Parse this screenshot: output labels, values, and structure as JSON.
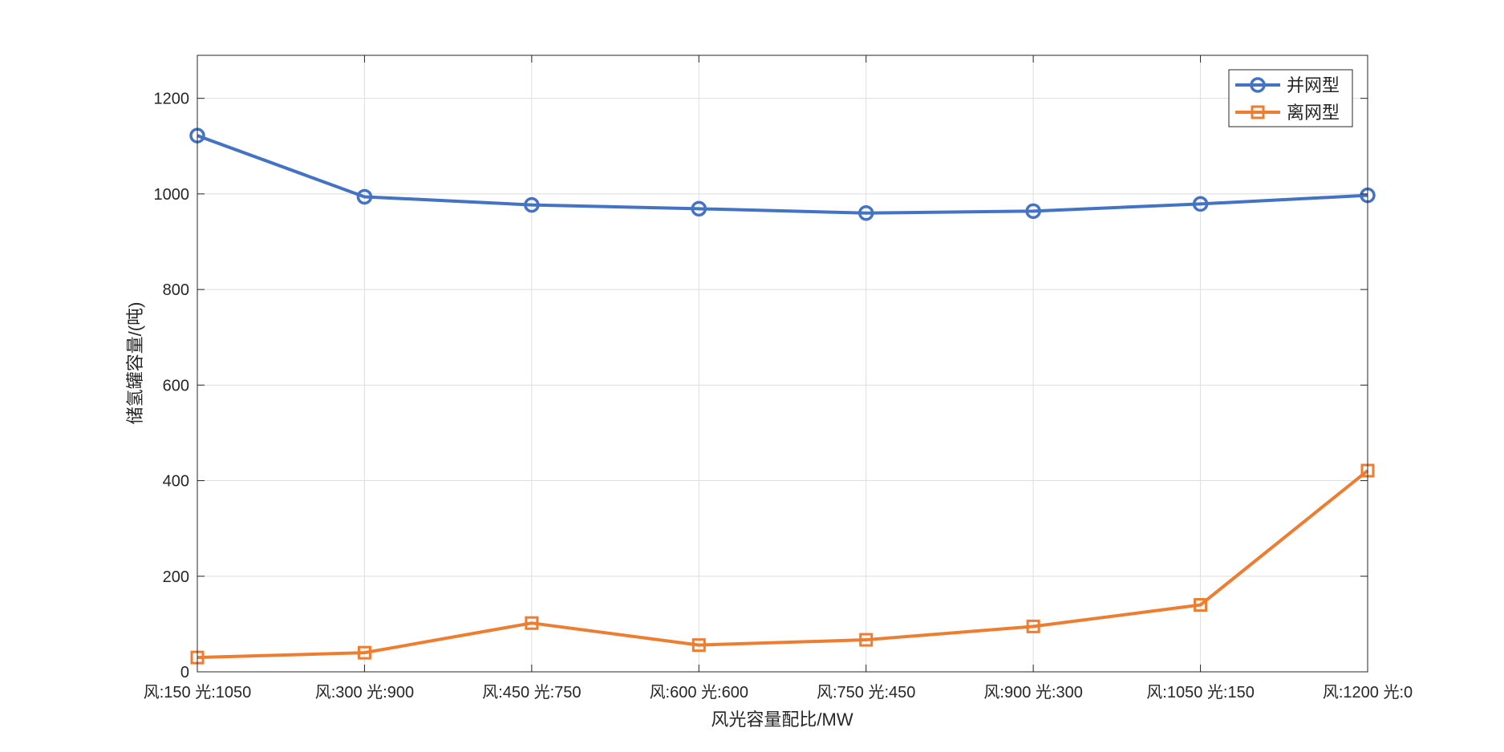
{
  "chart_data": {
    "type": "line",
    "title": "",
    "xlabel": "风光容量配比/MW",
    "ylabel": "储氢罐容量/(吨)",
    "categories": [
      "风:150 光:1050",
      "风:300 光:900",
      "风:450 光:750",
      "风:600 光:600",
      "风:750 光:450",
      "风:900 光:300",
      "风:1050 光:150",
      "风:1200 光:0"
    ],
    "ylim": [
      0,
      1290
    ],
    "yticks": [
      0,
      200,
      400,
      600,
      800,
      1000,
      1200
    ],
    "grid": true,
    "legend_position": "top-right",
    "series": [
      {
        "name": "并网型",
        "marker": "circle",
        "color": "#4472C4",
        "values": [
          1122,
          994,
          977,
          969,
          960,
          964,
          979,
          997
        ]
      },
      {
        "name": "离网型",
        "marker": "square",
        "color": "#ED7D31",
        "values": [
          30,
          40,
          102,
          56,
          67,
          95,
          140,
          421
        ]
      }
    ]
  }
}
